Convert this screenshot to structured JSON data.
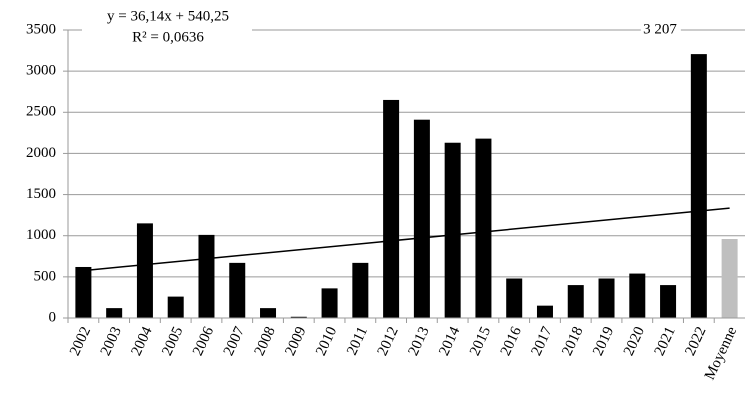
{
  "chart_data": {
    "type": "bar",
    "categories": [
      "2002",
      "2003",
      "2004",
      "2005",
      "2006",
      "2007",
      "2008",
      "2009",
      "2010",
      "2011",
      "2012",
      "2013",
      "2014",
      "2015",
      "2016",
      "2017",
      "2018",
      "2019",
      "2020",
      "2021",
      "2022",
      "Moyenne"
    ],
    "values": [
      620,
      120,
      1150,
      260,
      1010,
      670,
      120,
      15,
      360,
      670,
      2650,
      2410,
      2130,
      2180,
      480,
      150,
      400,
      480,
      540,
      400,
      3207,
      960
    ],
    "value_labels": [
      null,
      null,
      null,
      null,
      null,
      null,
      null,
      null,
      null,
      null,
      null,
      null,
      null,
      null,
      null,
      null,
      null,
      null,
      null,
      null,
      "3 207",
      null
    ],
    "colors": [
      "#000000",
      "#000000",
      "#000000",
      "#000000",
      "#000000",
      "#000000",
      "#000000",
      "#000000",
      "#000000",
      "#000000",
      "#000000",
      "#000000",
      "#000000",
      "#000000",
      "#000000",
      "#000000",
      "#000000",
      "#000000",
      "#000000",
      "#000000",
      "#000000",
      "#bfbfbf"
    ],
    "ylim": [
      0,
      3500
    ],
    "yticks": [
      0,
      500,
      1000,
      1500,
      2000,
      2500,
      3000,
      3500
    ],
    "grid": true,
    "trendline": {
      "slope": 36.14,
      "intercept": 540.25,
      "equation": "y = 36,14x + 540,25",
      "r2": "R² = 0,0636"
    }
  }
}
